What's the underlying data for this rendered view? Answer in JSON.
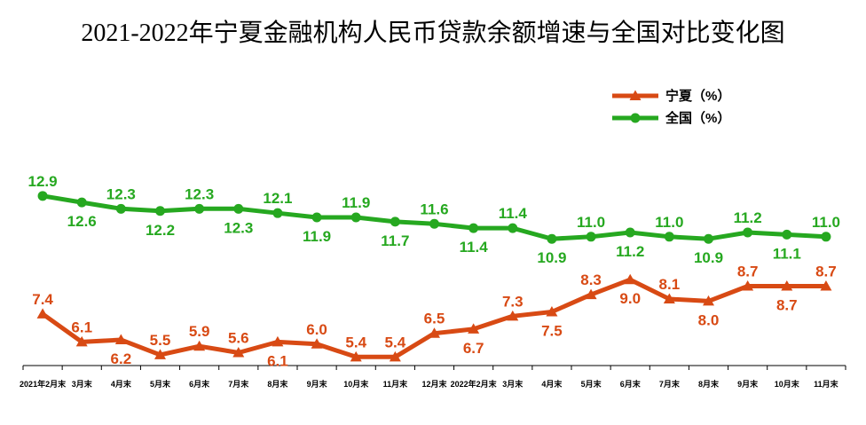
{
  "chart_data": {
    "type": "line",
    "title": "2021-2022年宁夏金融机构人民币贷款余额增速与全国对比变化图",
    "xlabel": "",
    "ylabel": "",
    "categories": [
      "2021年2月末",
      "3月末",
      "4月末",
      "5月末",
      "6月末",
      "7月末",
      "8月末",
      "9月末",
      "10月末",
      "11月末",
      "12月末",
      "2022年2月末",
      "3月末",
      "4月末",
      "5月末",
      "6月末",
      "7月末",
      "8月末",
      "9月末",
      "10月末",
      "11月末"
    ],
    "series": [
      {
        "name": "宁夏（%）",
        "marker": "triangle",
        "color": "#d84a14",
        "values": [
          7.4,
          6.1,
          6.2,
          5.5,
          5.9,
          5.6,
          6.1,
          6.0,
          5.4,
          5.4,
          6.5,
          6.7,
          7.3,
          7.5,
          8.3,
          9.0,
          8.1,
          8.0,
          8.7,
          8.7,
          8.7
        ]
      },
      {
        "name": "全国（%）",
        "marker": "circle",
        "color": "#26a820",
        "values": [
          12.9,
          12.6,
          12.3,
          12.2,
          12.3,
          12.3,
          12.1,
          11.9,
          11.9,
          11.7,
          11.6,
          11.4,
          11.4,
          10.9,
          11.0,
          11.2,
          11.0,
          10.9,
          11.2,
          11.1,
          11.0
        ]
      }
    ],
    "ylim": [
      5,
      18
    ],
    "y_axis_visible": false,
    "grid": false,
    "data_labels": true,
    "legend": "top-right"
  }
}
